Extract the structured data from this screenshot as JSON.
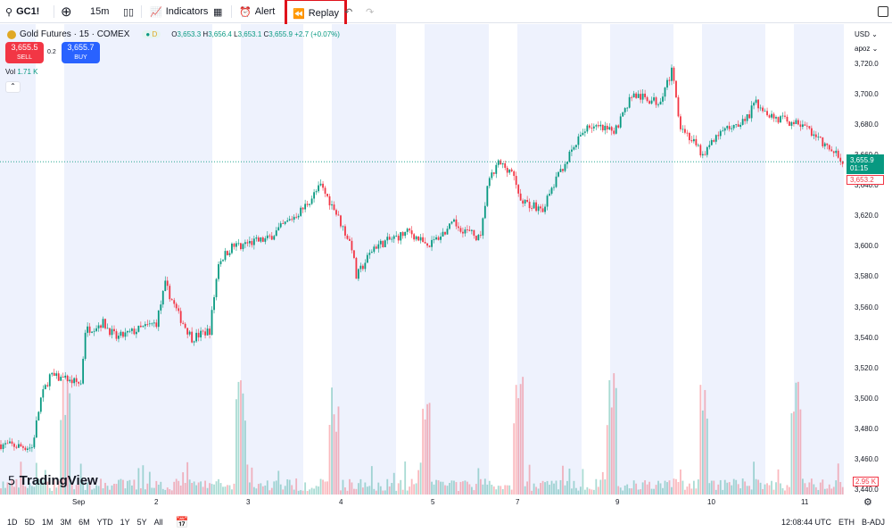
{
  "toolbar": {
    "symbol": "GC1!",
    "interval": "15m",
    "indicators": "Indicators",
    "alert": "Alert",
    "replay": "Replay"
  },
  "legend": {
    "title": "Gold Futures · 15 · COMEX",
    "badge": "D",
    "o_label": "O",
    "o": "3,653.3",
    "h_label": "H",
    "h": "3,656.4",
    "l_label": "L",
    "l": "3,653.1",
    "c_label": "C",
    "c": "3,655.9",
    "change": "+2.7 (+0.07%)",
    "vol_label": "Vol",
    "vol": "1.71 K"
  },
  "trade": {
    "sell_price": "3,655.5",
    "sell": "SELL",
    "spread": "0.2",
    "buy_price": "3,655.7",
    "buy": "BUY"
  },
  "axis": {
    "currency": "USD",
    "unit": "apoz",
    "ticks": [
      "3,720.0",
      "3,700.0",
      "3,680.0",
      "3,660.0",
      "3,640.0",
      "3,620.0",
      "3,600.0",
      "3,580.0",
      "3,560.0",
      "3,540.0",
      "3,520.0",
      "3,500.0",
      "3,480.0",
      "3,460.0",
      "3,440.0"
    ],
    "last_price": "3,655.9",
    "countdown": "01:15",
    "prev_price": "3,653.2",
    "vol_badge": "2.95 K"
  },
  "xaxis": [
    "Sep",
    "2",
    "3",
    "4",
    "5",
    "7",
    "9",
    "10",
    "11"
  ],
  "bottom": {
    "ranges": [
      "1D",
      "5D",
      "1M",
      "3M",
      "6M",
      "YTD",
      "1Y",
      "5Y",
      "All"
    ],
    "time": "12:08:44 UTC",
    "session": "ETH",
    "adj": "B-ADJ"
  },
  "logo": "TradingView",
  "chart_data": {
    "type": "candlestick",
    "ylim": [
      3440,
      3724
    ],
    "anchors": [
      [
        0,
        3470
      ],
      [
        14,
        3468
      ],
      [
        18,
        3500
      ],
      [
        22,
        3515
      ],
      [
        36,
        3510
      ],
      [
        38,
        3545
      ],
      [
        46,
        3550
      ],
      [
        52,
        3540
      ],
      [
        70,
        3550
      ],
      [
        74,
        3575
      ],
      [
        80,
        3555
      ],
      [
        86,
        3540
      ],
      [
        94,
        3545
      ],
      [
        98,
        3590
      ],
      [
        104,
        3600
      ],
      [
        120,
        3605
      ],
      [
        136,
        3625
      ],
      [
        144,
        3640
      ],
      [
        150,
        3625
      ],
      [
        158,
        3600
      ],
      [
        160,
        3580
      ],
      [
        168,
        3600
      ],
      [
        184,
        3610
      ],
      [
        192,
        3600
      ],
      [
        204,
        3615
      ],
      [
        216,
        3605
      ],
      [
        219,
        3640
      ],
      [
        224,
        3655
      ],
      [
        230,
        3650
      ],
      [
        234,
        3630
      ],
      [
        244,
        3625
      ],
      [
        252,
        3650
      ],
      [
        264,
        3680
      ],
      [
        276,
        3675
      ],
      [
        284,
        3700
      ],
      [
        296,
        3695
      ],
      [
        302,
        3715
      ],
      [
        306,
        3680
      ],
      [
        316,
        3660
      ],
      [
        324,
        3675
      ],
      [
        336,
        3685
      ],
      [
        340,
        3695
      ],
      [
        348,
        3685
      ],
      [
        362,
        3680
      ],
      [
        372,
        3665
      ],
      [
        380,
        3656
      ]
    ]
  },
  "colors": {
    "up": "#089981",
    "down": "#f23645",
    "band": "#eef2fd",
    "buy": "#2962ff"
  }
}
